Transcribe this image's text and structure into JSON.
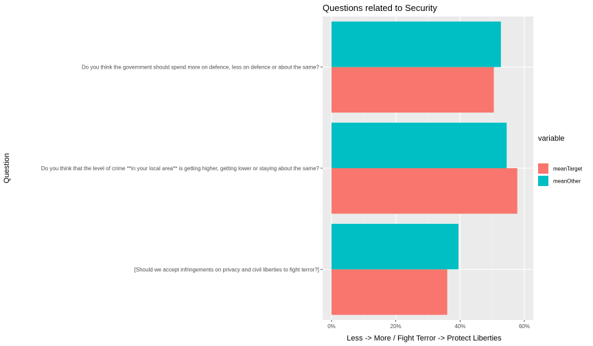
{
  "chart_data": {
    "type": "bar",
    "orientation": "horizontal",
    "title": "Questions related to Security",
    "xlabel": "Less -> More / Fight Terror -> Protect Liberties",
    "ylabel": "Question",
    "xlim": [
      0,
      0.6
    ],
    "xticks": [
      0,
      0.2,
      0.4,
      0.6
    ],
    "xtick_labels": [
      "0%",
      "20%",
      "40%",
      "60%"
    ],
    "categories": [
      "Do you think the government should spend more on defence, less on defence or about the same?",
      "Do you think that the level of crime **in your local area** is getting higher, getting lower or staying about the same?",
      "[Should we accept infringements on privacy and civil liberties to fight terror?]"
    ],
    "series": [
      {
        "name": "meanTarget",
        "color": "#F8766D",
        "values": [
          0.505,
          0.578,
          0.36
        ]
      },
      {
        "name": "meanOther",
        "color": "#00BFC4",
        "values": [
          0.527,
          0.545,
          0.395
        ]
      }
    ],
    "legend": {
      "title": "variable",
      "placement": "right",
      "order": [
        "meanTarget",
        "meanOther"
      ]
    },
    "grid": true
  }
}
